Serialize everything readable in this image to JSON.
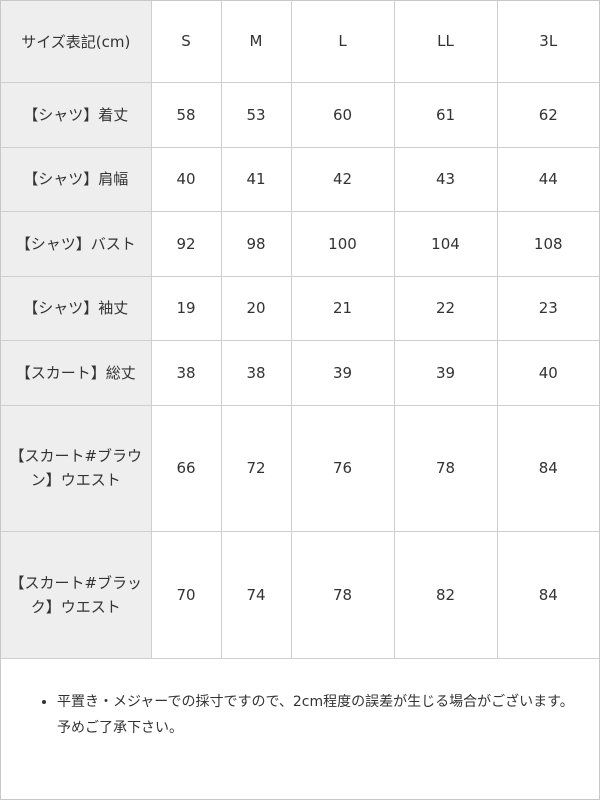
{
  "table": {
    "corner_label": "サイズ表記(cm)",
    "sizes": [
      "S",
      "M",
      "L",
      "LL",
      "3L"
    ],
    "rows": [
      {
        "label": "【シャツ】着丈",
        "values": [
          "58",
          "53",
          "60",
          "61",
          "62"
        ]
      },
      {
        "label": "【シャツ】肩幅",
        "values": [
          "40",
          "41",
          "42",
          "43",
          "44"
        ]
      },
      {
        "label": "【シャツ】バスト",
        "values": [
          "92",
          "98",
          "100",
          "104",
          "108"
        ]
      },
      {
        "label": "【シャツ】袖丈",
        "values": [
          "19",
          "20",
          "21",
          "22",
          "23"
        ]
      },
      {
        "label": "【スカート】総丈",
        "values": [
          "38",
          "38",
          "39",
          "39",
          "40"
        ]
      },
      {
        "label": "【スカート#ブラウン】ウエスト",
        "values": [
          "66",
          "72",
          "76",
          "78",
          "84"
        ]
      },
      {
        "label": "【スカート#ブラック】ウエスト",
        "values": [
          "70",
          "74",
          "78",
          "82",
          "84"
        ]
      }
    ]
  },
  "note": {
    "text": "平置き・メジャーでの採寸ですので、2cm程度の誤差が生じる場合がございます。予めご了承下さい。"
  }
}
